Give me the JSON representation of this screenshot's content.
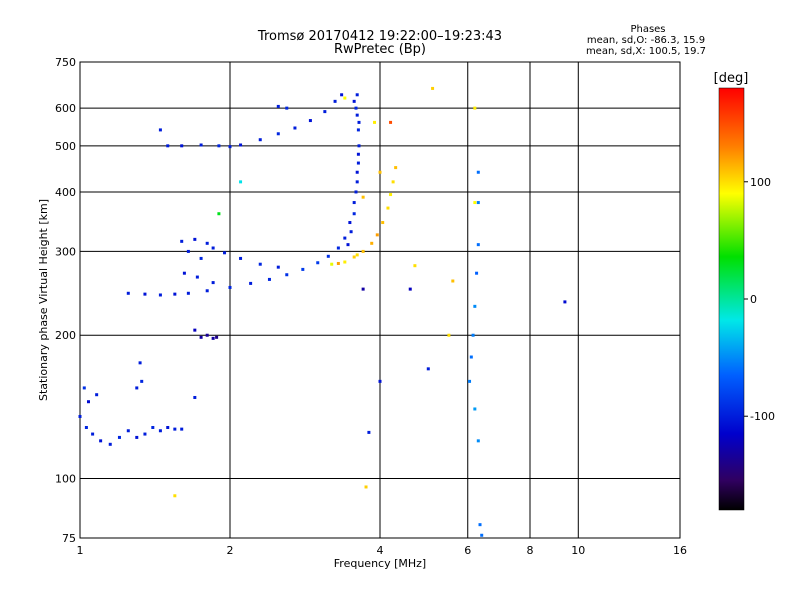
{
  "chart_data": {
    "type": "scatter",
    "title": "Tromsø 20170412 19:22:00–19:23:43",
    "subtitle": "RwPretec (Bp)",
    "xlabel": "Frequency [MHz]",
    "ylabel": "Stationary phase Virtual Height [km]",
    "x_scale": "log",
    "y_scale": "log",
    "xlim": [
      1,
      16
    ],
    "ylim": [
      75,
      750
    ],
    "x_ticks": [
      1,
      2,
      4,
      6,
      8,
      10,
      16
    ],
    "x_tick_labels": [
      "1",
      "2",
      "4",
      "6",
      "8",
      "10",
      "16"
    ],
    "y_ticks": [
      75,
      100,
      200,
      300,
      400,
      500,
      600,
      750
    ],
    "y_tick_labels": [
      "75",
      "100",
      "200",
      "300",
      "400",
      "500",
      "600",
      "750"
    ],
    "grid": true,
    "stats_header": "Phases",
    "stats": [
      "mean, sd,O: -86.3, 15.9",
      "mean, sd,X: 100.5, 19.7"
    ],
    "colorbar": {
      "label": "[deg]",
      "min": -180,
      "max": 180,
      "ticks": [
        100,
        0,
        -100
      ],
      "tick_labels": [
        "100",
        "0",
        "-100"
      ],
      "colors": [
        "#ff0000",
        "#ff8000",
        "#ffff00",
        "#00e000",
        "#00e8e8",
        "#0060ff",
        "#0000cc",
        "#300060",
        "#000000"
      ]
    },
    "series": [
      {
        "points": [
          [
            1.0,
            135,
            -100
          ],
          [
            1.03,
            128,
            -95
          ],
          [
            1.06,
            124,
            -100
          ],
          [
            1.1,
            120,
            -105
          ],
          [
            1.15,
            118,
            -100
          ],
          [
            1.2,
            122,
            -95
          ],
          [
            1.25,
            126,
            -100
          ],
          [
            1.3,
            122,
            -105
          ],
          [
            1.35,
            124,
            -100
          ],
          [
            1.4,
            128,
            -95
          ],
          [
            1.45,
            126,
            -100
          ],
          [
            1.5,
            128,
            -105
          ],
          [
            1.55,
            127,
            -100
          ],
          [
            1.6,
            127,
            -100
          ],
          [
            1.04,
            145,
            -110
          ],
          [
            1.08,
            150,
            -100
          ],
          [
            1.02,
            155,
            -90
          ],
          [
            1.3,
            155,
            -100
          ],
          [
            1.33,
            160,
            -95
          ],
          [
            1.32,
            175,
            -100
          ],
          [
            1.7,
            148,
            -100
          ]
        ]
      },
      {
        "points": [
          [
            1.25,
            245,
            -100
          ],
          [
            1.35,
            244,
            -105
          ],
          [
            1.45,
            243,
            -100
          ],
          [
            1.55,
            244,
            -105
          ],
          [
            1.65,
            245,
            -100
          ],
          [
            1.8,
            248,
            -100
          ],
          [
            2.0,
            252,
            -95
          ],
          [
            2.2,
            257,
            -100
          ],
          [
            2.4,
            262,
            -95
          ],
          [
            2.6,
            268,
            -90
          ],
          [
            2.8,
            275,
            -85
          ],
          [
            3.0,
            284,
            -85
          ],
          [
            3.15,
            293,
            -90
          ],
          [
            3.3,
            305,
            -95
          ],
          [
            3.4,
            320,
            -100
          ],
          [
            3.48,
            345,
            -105
          ],
          [
            3.55,
            380,
            -100
          ],
          [
            3.6,
            420,
            -100
          ],
          [
            3.62,
            480,
            -105
          ],
          [
            3.63,
            560,
            -100
          ],
          [
            3.6,
            640,
            -100
          ],
          [
            3.55,
            620,
            -105
          ],
          [
            3.58,
            600,
            -95
          ],
          [
            3.6,
            580,
            -100
          ],
          [
            3.62,
            540,
            -95
          ],
          [
            3.63,
            500,
            -100
          ],
          [
            3.62,
            460,
            -100
          ],
          [
            3.6,
            440,
            -105
          ],
          [
            3.58,
            400,
            -100
          ],
          [
            3.55,
            360,
            -95
          ],
          [
            3.5,
            330,
            -100
          ],
          [
            3.45,
            310,
            -105
          ]
        ]
      },
      {
        "points": [
          [
            1.6,
            315,
            -100
          ],
          [
            1.7,
            318,
            -105
          ],
          [
            1.8,
            312,
            -100
          ],
          [
            1.65,
            300,
            -100
          ],
          [
            1.75,
            290,
            -95
          ],
          [
            1.85,
            305,
            -100
          ],
          [
            1.95,
            298,
            -100
          ],
          [
            2.1,
            290,
            -100
          ],
          [
            2.3,
            282,
            -95
          ],
          [
            2.5,
            278,
            -100
          ],
          [
            1.62,
            270,
            -105
          ],
          [
            1.72,
            265,
            -100
          ],
          [
            1.85,
            258,
            -100
          ]
        ]
      },
      {
        "points": [
          [
            1.5,
            500,
            -100
          ],
          [
            1.6,
            500,
            -105
          ],
          [
            1.75,
            502,
            -100
          ],
          [
            1.9,
            500,
            -95
          ],
          [
            2.0,
            498,
            -100
          ],
          [
            2.1,
            502,
            -105
          ],
          [
            2.3,
            515,
            -100
          ],
          [
            2.5,
            530,
            -95
          ],
          [
            2.7,
            545,
            -100
          ],
          [
            2.9,
            565,
            -105
          ],
          [
            3.1,
            590,
            -100
          ],
          [
            3.25,
            620,
            -100
          ],
          [
            3.35,
            640,
            -105
          ],
          [
            1.45,
            540,
            -100
          ],
          [
            2.5,
            605,
            -100
          ],
          [
            2.6,
            600,
            -95
          ]
        ]
      },
      {
        "points": [
          [
            1.7,
            205,
            -120
          ],
          [
            1.75,
            198,
            -130
          ],
          [
            1.8,
            200,
            -135
          ],
          [
            1.85,
            197,
            -130
          ],
          [
            1.88,
            198,
            -140
          ]
        ]
      },
      {
        "points": [
          [
            3.2,
            282,
            85
          ],
          [
            3.4,
            285,
            95
          ],
          [
            3.55,
            292,
            105
          ],
          [
            3.7,
            300,
            110
          ],
          [
            3.85,
            312,
            115
          ],
          [
            3.95,
            325,
            120
          ],
          [
            4.05,
            345,
            110
          ],
          [
            4.15,
            370,
            100
          ],
          [
            4.2,
            395,
            95
          ],
          [
            4.25,
            420,
            100
          ],
          [
            4.3,
            450,
            110
          ],
          [
            3.3,
            283,
            120
          ],
          [
            3.6,
            295,
            100
          ]
        ]
      },
      {
        "points": [
          [
            6.3,
            440,
            -60
          ],
          [
            6.3,
            380,
            -55
          ],
          [
            6.3,
            310,
            -60
          ],
          [
            6.25,
            270,
            -65
          ],
          [
            6.2,
            230,
            -50
          ],
          [
            6.15,
            200,
            -55
          ],
          [
            6.1,
            180,
            -60
          ],
          [
            6.05,
            160,
            -55
          ],
          [
            6.2,
            140,
            -45
          ],
          [
            6.3,
            120,
            -50
          ],
          [
            6.35,
            80,
            -60
          ],
          [
            6.4,
            76,
            -60
          ],
          [
            5.5,
            200,
            100
          ],
          [
            5.6,
            260,
            110
          ],
          [
            6.2,
            600,
            95
          ],
          [
            6.2,
            380,
            90
          ]
        ]
      },
      {
        "points": [
          [
            9.4,
            235,
            -110
          ],
          [
            3.8,
            125,
            -100
          ],
          [
            3.7,
            250,
            -130
          ],
          [
            4.6,
            250,
            -120
          ],
          [
            5.0,
            170,
            -100
          ],
          [
            4.0,
            160,
            -105
          ],
          [
            3.7,
            390,
            110
          ],
          [
            4.0,
            440,
            110
          ],
          [
            5.1,
            660,
            105
          ],
          [
            1.55,
            92,
            100
          ],
          [
            3.75,
            96,
            105
          ],
          [
            3.9,
            560,
            95
          ],
          [
            2.1,
            420,
            -20
          ],
          [
            1.9,
            360,
            30
          ],
          [
            4.2,
            560,
            150
          ],
          [
            3.4,
            630,
            90
          ],
          [
            4.7,
            280,
            100
          ]
        ]
      }
    ]
  }
}
